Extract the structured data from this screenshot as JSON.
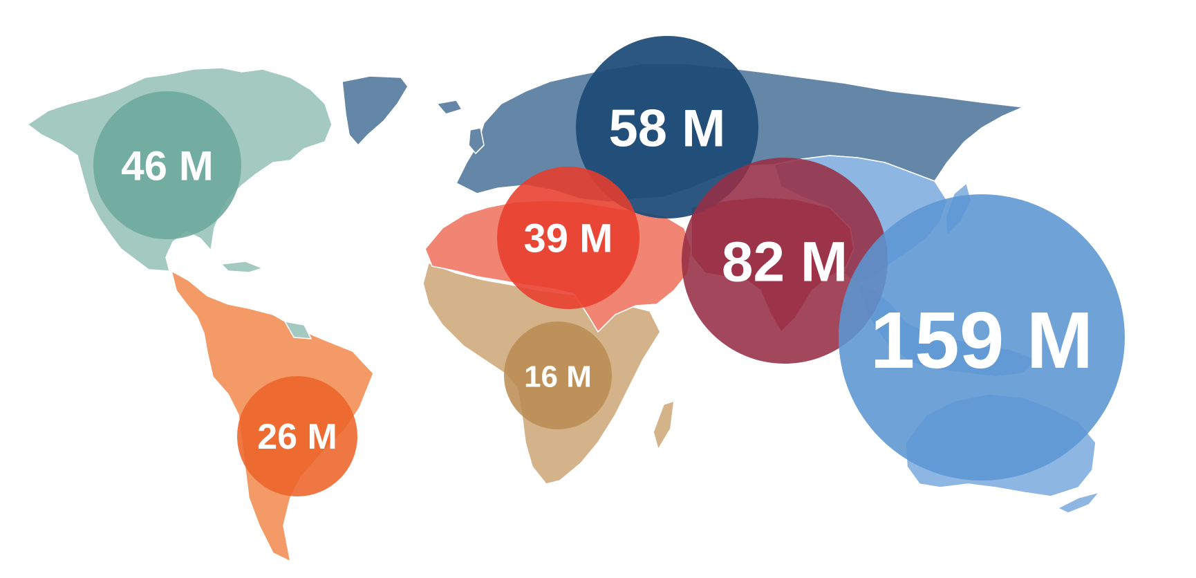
{
  "regions": [
    {
      "id": "north-america",
      "value_label": "46 M",
      "land_color": "#a3c9c1",
      "bubble_color": "#6ca79b"
    },
    {
      "id": "latin-america",
      "value_label": "26 M",
      "land_color": "#f39a66",
      "bubble_color": "#ec642a"
    },
    {
      "id": "europe-russia",
      "value_label": "58 M",
      "land_color": "#6487a7",
      "bubble_color": "#1c4a76"
    },
    {
      "id": "middle-east-north-africa",
      "value_label": "39 M",
      "land_color": "#f28474",
      "bubble_color": "#e83e2c"
    },
    {
      "id": "sub-saharan-africa",
      "value_label": "16 M",
      "land_color": "#d4b38a",
      "bubble_color": "#b98b50"
    },
    {
      "id": "south-asia",
      "value_label": "82 M",
      "land_color": "#c7525c",
      "bubble_color": "#962f45"
    },
    {
      "id": "east-asia-pacific",
      "value_label": "159 M",
      "land_color": "#8db6e2",
      "bubble_color": "#5b96d2"
    }
  ]
}
